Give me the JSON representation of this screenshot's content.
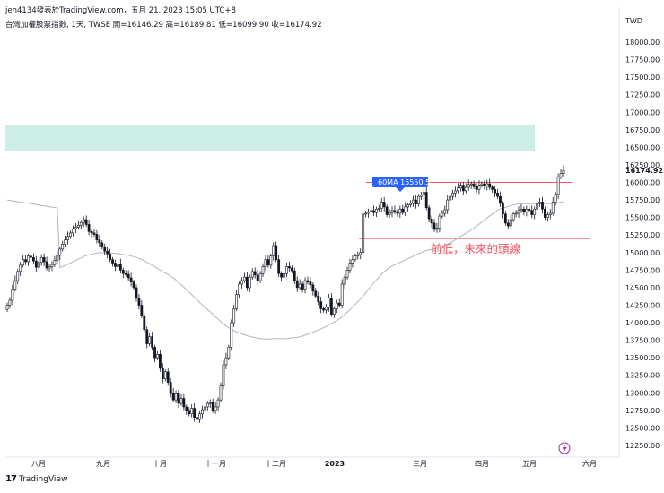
{
  "header": {
    "author_line": "jen4134發表於TradingView.com，五月 21, 2023 15:05 UTC+8",
    "symbol_line": "台灣加權股票指數, 1天, TWSE  開=16146.29  高=16189.81  低=16099.90  收=16174.92"
  },
  "footer": {
    "brand": "TradingView"
  },
  "chart_data": {
    "type": "candlestick",
    "title": "台灣加權股票指數, 1天, TWSE",
    "currency": "TWD",
    "ylim": [
      12000,
      18400
    ],
    "y_ticks": [
      12250,
      12500,
      12750,
      13000,
      13250,
      13500,
      13750,
      14000,
      14250,
      14500,
      14750,
      15000,
      15250,
      15500,
      15750,
      16000,
      16250,
      16500,
      16750,
      17000,
      17250,
      17500,
      17750,
      18000
    ],
    "last_price": 16174.92,
    "x_labels": [
      "八月",
      "九月",
      "十月",
      "十一月",
      "十二月",
      "2023",
      "三月",
      "四月",
      "五月",
      "六月"
    ],
    "ma_label": "60MA 15550.5",
    "annotation": "前低，未來的頭線",
    "supply_zone": [
      16450,
      16820
    ],
    "horizontal_lines": [
      16000,
      15200
    ],
    "colors": {
      "zone": "#cdeee6",
      "ma": "#b2b5be",
      "hline": "#f7525f",
      "label_bg": "#2962ff",
      "candle": "#131722"
    },
    "closes": [
      14250,
      14320,
      14480,
      14600,
      14730,
      14820,
      14900,
      14870,
      14950,
      14930,
      14880,
      14790,
      14860,
      14930,
      14870,
      14780,
      14800,
      14830,
      14890,
      14960,
      15050,
      15120,
      15180,
      15230,
      15280,
      15340,
      15360,
      15390,
      15430,
      15470,
      15400,
      15300,
      15280,
      15260,
      15180,
      15140,
      15080,
      15020,
      14980,
      14900,
      14850,
      14800,
      14840,
      14750,
      14700,
      14690,
      14640,
      14580,
      14500,
      14350,
      14250,
      14100,
      13900,
      13700,
      13800,
      13650,
      13500,
      13550,
      13350,
      13200,
      13300,
      13150,
      13000,
      12900,
      13000,
      12850,
      12920,
      12800,
      12750,
      12700,
      12780,
      12650,
      12620,
      12700,
      12760,
      12800,
      12850,
      12860,
      12750,
      12800,
      12900,
      13100,
      13400,
      13500,
      13650,
      14000,
      14200,
      14400,
      14550,
      14600,
      14650,
      14500,
      14650,
      14730,
      14680,
      14600,
      14700,
      14800,
      14900,
      14820,
      14950,
      15100,
      14900,
      14700,
      14650,
      14700,
      14800,
      14780,
      14740,
      14600,
      14500,
      14550,
      14480,
      14600,
      14580,
      14540,
      14450,
      14380,
      14300,
      14200,
      14180,
      14220,
      14350,
      14120,
      14200,
      14280,
      14250,
      14550,
      14650,
      14750,
      14850,
      14900,
      14950,
      14970,
      15000,
      15550,
      15560,
      15580,
      15600,
      15570,
      15620,
      15630,
      15720,
      15650,
      15540,
      15570,
      15600,
      15580,
      15560,
      15620,
      15570,
      15650,
      15680,
      15700,
      15750,
      15690,
      15800,
      15820,
      15860,
      15640,
      15480,
      15420,
      15330,
      15350,
      15520,
      15560,
      15610,
      15750,
      15800,
      15850,
      15880,
      15920,
      15960,
      15880,
      15930,
      15970,
      15980,
      15940,
      15900,
      15960,
      15980,
      15950,
      15980,
      15930,
      15900,
      15850,
      15800,
      15700,
      15550,
      15420,
      15380,
      15470,
      15550,
      15560,
      15600,
      15620,
      15580,
      15620,
      15600,
      15540,
      15620,
      15700,
      15720,
      15620,
      15500,
      15540,
      15560,
      15720,
      15830,
      16080,
      16130,
      16170
    ]
  }
}
